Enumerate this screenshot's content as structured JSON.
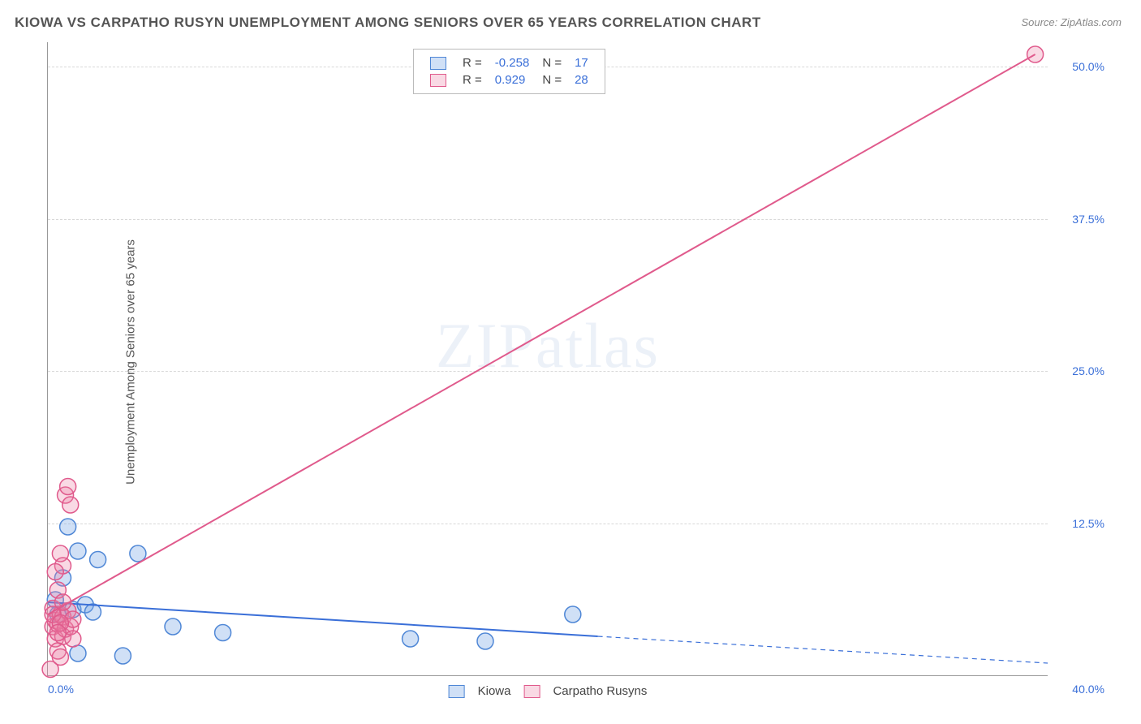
{
  "title": "KIOWA VS CARPATHO RUSYN UNEMPLOYMENT AMONG SENIORS OVER 65 YEARS CORRELATION CHART",
  "source": "Source: ZipAtlas.com",
  "y_axis_label": "Unemployment Among Seniors over 65 years",
  "watermark": "ZIPatlas",
  "chart": {
    "type": "scatter",
    "background_color": "#ffffff",
    "grid_color": "#d8d8d8",
    "axis_color": "#999999",
    "xlim": [
      0,
      40
    ],
    "ylim": [
      0,
      52
    ],
    "x_ticks": [
      {
        "v": 0,
        "label": "0.0%"
      },
      {
        "v": 40,
        "label": "40.0%"
      }
    ],
    "y_ticks": [
      {
        "v": 12.5,
        "label": "12.5%"
      },
      {
        "v": 25.0,
        "label": "25.0%"
      },
      {
        "v": 37.5,
        "label": "37.5%"
      },
      {
        "v": 50.0,
        "label": "50.0%"
      }
    ],
    "series": [
      {
        "name": "Kiowa",
        "marker_color_fill": "rgba(120,165,230,0.35)",
        "marker_color_stroke": "#4f87d6",
        "marker_radius": 10,
        "line_color": "#3a6fd8",
        "line_width": 2,
        "R": "-0.258",
        "N": "17",
        "points": [
          [
            0.3,
            6.2
          ],
          [
            0.4,
            5.0
          ],
          [
            0.6,
            8.0
          ],
          [
            0.8,
            12.2
          ],
          [
            1.0,
            5.4
          ],
          [
            1.2,
            10.2
          ],
          [
            1.5,
            5.8
          ],
          [
            1.8,
            5.2
          ],
          [
            1.2,
            1.8
          ],
          [
            2.0,
            9.5
          ],
          [
            3.0,
            1.6
          ],
          [
            3.6,
            10.0
          ],
          [
            5.0,
            4.0
          ],
          [
            7.0,
            3.5
          ],
          [
            14.5,
            3.0
          ],
          [
            17.5,
            2.8
          ],
          [
            21.0,
            5.0
          ]
        ],
        "trend": {
          "x1": 0,
          "y1": 6.0,
          "x2": 22,
          "y2": 3.2,
          "x3": 40,
          "y3": 1.0
        }
      },
      {
        "name": "Carpatho Rusyns",
        "marker_color_fill": "rgba(235,130,165,0.30)",
        "marker_color_stroke": "#e05a8c",
        "marker_radius": 10,
        "line_color": "#e05a8c",
        "line_width": 2,
        "R": "0.929",
        "N": "28",
        "points": [
          [
            0.1,
            0.5
          ],
          [
            0.2,
            4.0
          ],
          [
            0.2,
            5.5
          ],
          [
            0.3,
            3.0
          ],
          [
            0.3,
            4.5
          ],
          [
            0.4,
            7.0
          ],
          [
            0.4,
            4.2
          ],
          [
            0.5,
            10.0
          ],
          [
            0.5,
            5.0
          ],
          [
            0.6,
            3.2
          ],
          [
            0.6,
            4.8
          ],
          [
            0.7,
            3.8
          ],
          [
            0.7,
            14.8
          ],
          [
            0.8,
            15.5
          ],
          [
            0.8,
            5.3
          ],
          [
            0.9,
            4.0
          ],
          [
            0.9,
            14.0
          ],
          [
            1.0,
            4.6
          ],
          [
            1.0,
            3.0
          ],
          [
            0.6,
            9.0
          ],
          [
            0.4,
            2.0
          ],
          [
            0.5,
            1.5
          ],
          [
            0.3,
            8.5
          ],
          [
            0.6,
            6.0
          ],
          [
            0.2,
            5.0
          ],
          [
            0.5,
            4.3
          ],
          [
            0.4,
            3.5
          ],
          [
            39.5,
            51.0
          ]
        ],
        "trend": {
          "x1": 0,
          "y1": 5.0,
          "x2": 39.5,
          "y2": 51.0
        }
      }
    ]
  },
  "legend_stats_labels": {
    "R": "R =",
    "N": "N ="
  },
  "bottom_legend": [
    "Kiowa",
    "Carpatho Rusyns"
  ]
}
